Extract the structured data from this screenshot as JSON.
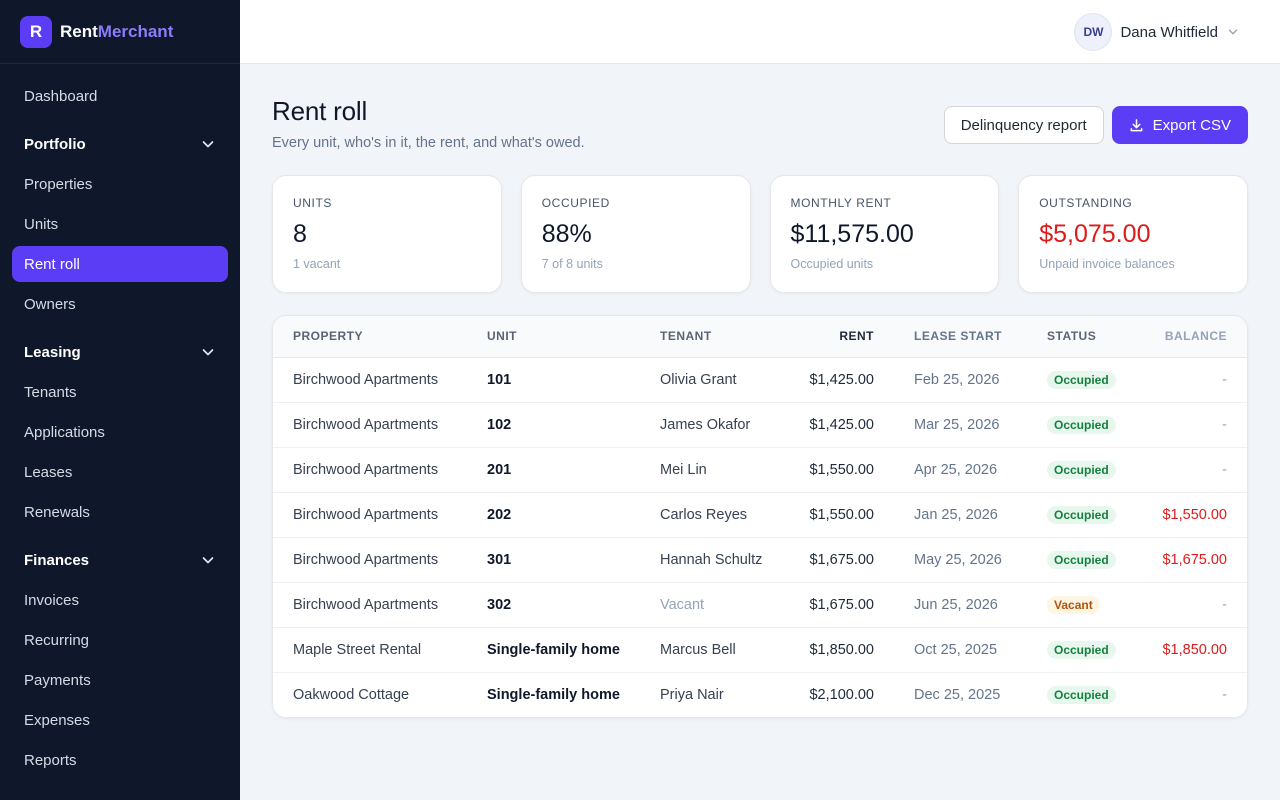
{
  "brand": {
    "logo_letter": "R",
    "name_part1": "Rent",
    "name_part2": "Merchant",
    "accent_color": "#5b3df5"
  },
  "sidebar": {
    "top_item": "Dashboard",
    "sections": [
      {
        "label": "Portfolio",
        "icon": "chevron-down-icon",
        "items": [
          "Properties",
          "Units",
          "Rent roll",
          "Owners"
        ]
      },
      {
        "label": "Leasing",
        "icon": "chevron-down-icon",
        "items": [
          "Tenants",
          "Applications",
          "Leases",
          "Renewals"
        ]
      },
      {
        "label": "Finances",
        "icon": "chevron-down-icon",
        "items": [
          "Invoices",
          "Recurring",
          "Payments",
          "Expenses",
          "Reports"
        ]
      }
    ],
    "active_item": "Rent roll"
  },
  "header": {
    "user_initials": "DW",
    "user_name": "Dana Whitfield"
  },
  "page": {
    "title": "Rent roll",
    "subtitle": "Every unit, who's in it, the rent, and what's owed.",
    "delinquency_button": "Delinquency report",
    "export_button": "Export CSV"
  },
  "stats": [
    {
      "label": "UNITS",
      "value": "8",
      "note": "1 vacant"
    },
    {
      "label": "OCCUPIED",
      "value": "88%",
      "note": "7 of 8 units"
    },
    {
      "label": "MONTHLY RENT",
      "value": "$11,575.00",
      "note": "Occupied units"
    },
    {
      "label": "OUTSTANDING",
      "value": "$5,075.00",
      "note": "Unpaid invoice balances"
    }
  ],
  "table": {
    "headers": {
      "property": "PROPERTY",
      "unit": "UNIT",
      "tenant": "TENANT",
      "rent": "RENT",
      "lease_start": "LEASE START",
      "status": "STATUS",
      "balance": "BALANCE"
    },
    "rows": [
      {
        "property": "Birchwood Apartments",
        "unit": "101",
        "tenant": "Olivia Grant",
        "rent": "$1,425.00",
        "lease_start": "Feb 25, 2026",
        "status": "Occupied",
        "balance": "-"
      },
      {
        "property": "Birchwood Apartments",
        "unit": "102",
        "tenant": "James Okafor",
        "rent": "$1,425.00",
        "lease_start": "Mar 25, 2026",
        "status": "Occupied",
        "balance": "-"
      },
      {
        "property": "Birchwood Apartments",
        "unit": "201",
        "tenant": "Mei Lin",
        "rent": "$1,550.00",
        "lease_start": "Apr 25, 2026",
        "status": "Occupied",
        "balance": "-"
      },
      {
        "property": "Birchwood Apartments",
        "unit": "202",
        "tenant": "Carlos Reyes",
        "rent": "$1,550.00",
        "lease_start": "Jan 25, 2026",
        "status": "Occupied",
        "balance": "$1,550.00"
      },
      {
        "property": "Birchwood Apartments",
        "unit": "301",
        "tenant": "Hannah Schultz",
        "rent": "$1,675.00",
        "lease_start": "May 25, 2026",
        "status": "Occupied",
        "balance": "$1,675.00"
      },
      {
        "property": "Birchwood Apartments",
        "unit": "302",
        "tenant": "Vacant",
        "rent": "$1,675.00",
        "lease_start": "Jun 25, 2026",
        "status": "Vacant",
        "balance": "-"
      },
      {
        "property": "Maple Street Rental",
        "unit": "Single-family home",
        "tenant": "Marcus Bell",
        "rent": "$1,850.00",
        "lease_start": "Oct 25, 2025",
        "status": "Occupied",
        "balance": "$1,850.00"
      },
      {
        "property": "Oakwood Cottage",
        "unit": "Single-family home",
        "tenant": "Priya Nair",
        "rent": "$2,100.00",
        "lease_start": "Dec 25, 2025",
        "status": "Occupied",
        "balance": "-"
      }
    ]
  }
}
